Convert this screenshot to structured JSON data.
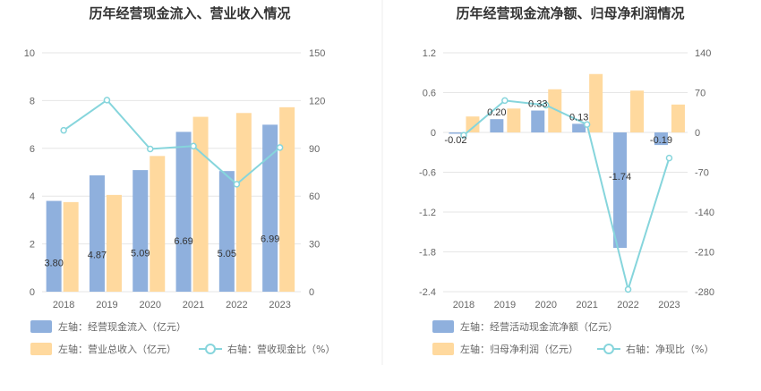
{
  "colors": {
    "bar_primary": "#8fb0dd",
    "bar_secondary": "#ffd99e",
    "line": "#86d5dc",
    "grid": "#e6e6e6",
    "divider": "#eeeeee"
  },
  "chart_data": [
    {
      "type": "bar",
      "title": "历年经营现金流入、营业收入情况",
      "categories": [
        "2018",
        "2019",
        "2020",
        "2021",
        "2022",
        "2023"
      ],
      "y_left": {
        "ticks": [
          "0",
          "2",
          "4",
          "6",
          "8",
          "10"
        ],
        "range": [
          0,
          10
        ]
      },
      "y_right": {
        "ticks": [
          "0",
          "30",
          "60",
          "90",
          "120",
          "150"
        ],
        "range": [
          0,
          150
        ]
      },
      "grid": true,
      "legend_position": "bottom-left",
      "series": [
        {
          "name": "左轴：经营现金流入（亿元）",
          "kind": "bar",
          "axis": "left",
          "values": [
            3.8,
            4.87,
            5.09,
            6.69,
            5.05,
            6.99
          ],
          "labels": [
            "3.80",
            "4.87",
            "5.09",
            "6.69",
            "5.05",
            "6.99"
          ]
        },
        {
          "name": "左轴：营业总收入（亿元）",
          "kind": "bar",
          "axis": "left",
          "values": [
            3.75,
            4.05,
            5.68,
            7.32,
            7.48,
            7.72
          ]
        },
        {
          "name": "右轴：营收现金比（%）",
          "kind": "line",
          "axis": "right",
          "values": [
            101.3,
            120.3,
            89.6,
            91.4,
            67.5,
            90.5
          ]
        }
      ]
    },
    {
      "type": "bar",
      "title": "历年经营现金流净额、归母净利润情况",
      "categories": [
        "2018",
        "2019",
        "2020",
        "2021",
        "2022",
        "2023"
      ],
      "y_left": {
        "ticks": [
          "-2.4",
          "-1.8",
          "-1.2",
          "-0.6",
          "0",
          "0.6",
          "1.2"
        ],
        "range": [
          -2.4,
          1.2
        ]
      },
      "y_right": {
        "ticks": [
          "-280",
          "-210",
          "-140",
          "-70",
          "0",
          "70",
          "140"
        ],
        "range": [
          -280,
          140
        ]
      },
      "grid": true,
      "legend_position": "bottom-left",
      "series": [
        {
          "name": "左轴：经营活动现金流净额（亿元）",
          "kind": "bar",
          "axis": "left",
          "values": [
            -0.02,
            0.2,
            0.33,
            0.13,
            -1.74,
            -0.19
          ],
          "labels": [
            "-0.02",
            "0.20",
            "0.33",
            "0.13",
            "-1.74",
            "-0.19"
          ]
        },
        {
          "name": "左轴：归母净利润（亿元）",
          "kind": "bar",
          "axis": "left",
          "values": [
            0.24,
            0.36,
            0.65,
            0.88,
            0.63,
            0.42
          ]
        },
        {
          "name": "右轴：净现比（%）",
          "kind": "line",
          "axis": "right",
          "values": [
            -5,
            56,
            48,
            14,
            -276,
            -45
          ]
        }
      ]
    }
  ]
}
